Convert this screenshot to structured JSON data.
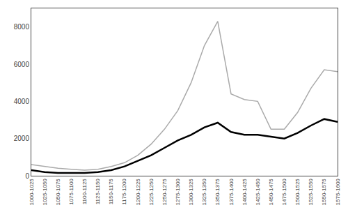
{
  "chart_data": {
    "type": "line",
    "categories": [
      "1000-1025",
      "1025-1050",
      "1050-1075",
      "1075-1100",
      "1100-1125",
      "1125-1150",
      "1150-1175",
      "1175-1200",
      "1200-1225",
      "1225-1250",
      "1250-1275",
      "1275-1300",
      "1300-1325",
      "1325-1350",
      "1350-1375",
      "1375-1400",
      "1400-1425",
      "1425-1450",
      "1450-1475",
      "1475-1500",
      "1500-1525",
      "1525-1550",
      "1550-1575",
      "1575-1600"
    ],
    "series": [
      {
        "color": "#aaaaaa",
        "values": [
          600,
          500,
          400,
          350,
          300,
          350,
          500,
          700,
          1100,
          1700,
          2500,
          3500,
          5000,
          7000,
          8300,
          4400,
          4100,
          4000,
          2500,
          2500,
          3400,
          4700,
          5700,
          5600
        ]
      },
      {
        "color": "#000000",
        "values": [
          300,
          200,
          150,
          150,
          150,
          200,
          300,
          500,
          800,
          1100,
          1500,
          1900,
          2200,
          2600,
          2850,
          2350,
          2200,
          2200,
          2100,
          2000,
          2300,
          2700,
          3050,
          2900
        ]
      }
    ],
    "ylim": [
      0,
      9000
    ],
    "yticks": [
      0,
      2000,
      4000,
      6000,
      8000
    ],
    "grid": false
  }
}
